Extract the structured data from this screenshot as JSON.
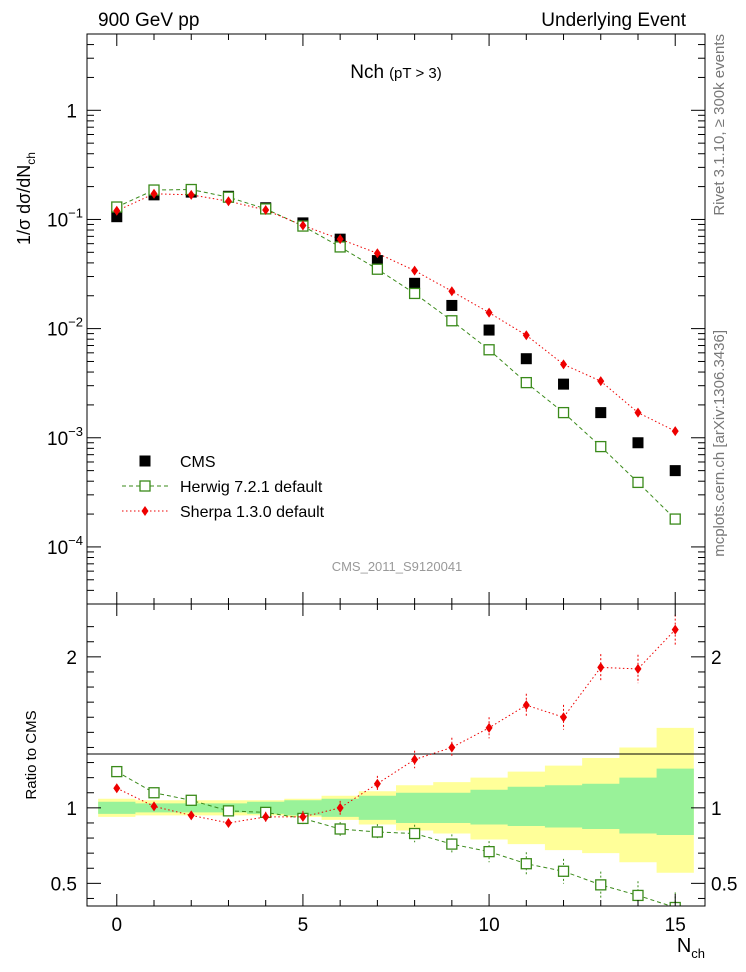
{
  "header": {
    "left": "900 GeV pp",
    "right": "Underlying Event"
  },
  "side_labels": {
    "rivet": "Rivet 3.1.10, ≥ 300k events",
    "mcplots": "mcplots.cern.ch [arXiv:1306.3436]"
  },
  "colors": {
    "cms": "#000000",
    "herwig": "#3a8a1a",
    "sherpa": "#ee0000",
    "band_inner": "#99f299",
    "band_outer": "#ffff99"
  },
  "chart_data": [
    {
      "type": "scatter",
      "panel": "main",
      "title": "Nch",
      "title_sub": "(pT >  3)",
      "ylabel": "1/σ dσ/dN",
      "ylabel_sub": "ch",
      "yscale": "log",
      "ylim": [
        3e-05,
        5
      ],
      "xlim": [
        -0.8,
        15.8
      ],
      "ytick_labels": [
        {
          "value": 1,
          "base": "1",
          "exp": ""
        },
        {
          "value": 0.1,
          "base": "10",
          "exp": "−1"
        },
        {
          "value": 0.01,
          "base": "10",
          "exp": "−2"
        },
        {
          "value": 0.001,
          "base": "10",
          "exp": "−3"
        },
        {
          "value": 0.0001,
          "base": "10",
          "exp": "−4"
        }
      ],
      "watermark": "CMS_2011_S9120041",
      "legend_position": "bottom-left",
      "x": [
        0,
        1,
        2,
        3,
        4,
        5,
        6,
        7,
        8,
        9,
        10,
        11,
        12,
        13,
        14,
        15
      ],
      "series": [
        {
          "name": "CMS",
          "marker": "filled-square",
          "values": [
            0.106,
            0.168,
            0.178,
            0.163,
            0.128,
            0.093,
            0.066,
            0.042,
            0.026,
            0.0163,
            0.0097,
            0.0053,
            0.0031,
            0.0017,
            0.0009,
            0.0005
          ]
        },
        {
          "name": "Herwig 7.2.1 default",
          "marker": "open-square",
          "line": "dashed",
          "values": [
            0.13,
            0.186,
            0.188,
            0.16,
            0.125,
            0.087,
            0.056,
            0.035,
            0.021,
            0.0118,
            0.0064,
            0.0032,
            0.0017,
            0.00083,
            0.00039,
            0.00018
          ]
        },
        {
          "name": "Sherpa 1.3.0 default",
          "marker": "diamond",
          "line": "dotted",
          "values": [
            0.12,
            0.172,
            0.168,
            0.147,
            0.122,
            0.088,
            0.066,
            0.049,
            0.034,
            0.022,
            0.014,
            0.0087,
            0.0047,
            0.0033,
            0.0017,
            0.00115
          ]
        }
      ]
    },
    {
      "type": "scatter",
      "panel": "ratio",
      "ylabel": "Ratio to CMS",
      "xlabel": "N",
      "xlabel_sub": "ch",
      "ylim": [
        0.35,
        2.35
      ],
      "xlim": [
        -0.8,
        15.8
      ],
      "xtick_labels": [
        "0",
        "5",
        "10",
        "15"
      ],
      "xtick_values": [
        0,
        5,
        10,
        15
      ],
      "ytick_labels": [
        "0.5",
        "1",
        "2"
      ],
      "ytick_values": [
        0.5,
        1,
        2
      ],
      "x": [
        0,
        1,
        2,
        3,
        4,
        5,
        6,
        7,
        8,
        9,
        10,
        11,
        12,
        13,
        14,
        15
      ],
      "band_inner": {
        "lower": [
          0.96,
          0.97,
          0.97,
          0.97,
          0.96,
          0.95,
          0.94,
          0.92,
          0.9,
          0.9,
          0.89,
          0.88,
          0.87,
          0.86,
          0.83,
          0.82
        ],
        "upper": [
          1.04,
          1.03,
          1.03,
          1.03,
          1.04,
          1.05,
          1.06,
          1.08,
          1.1,
          1.1,
          1.12,
          1.14,
          1.15,
          1.16,
          1.2,
          1.26
        ]
      },
      "band_outer": {
        "lower": [
          0.94,
          0.95,
          0.95,
          0.95,
          0.95,
          0.94,
          0.92,
          0.89,
          0.85,
          0.83,
          0.79,
          0.76,
          0.72,
          0.7,
          0.64,
          0.57
        ],
        "upper": [
          1.06,
          1.05,
          1.05,
          1.05,
          1.05,
          1.06,
          1.08,
          1.11,
          1.15,
          1.17,
          1.2,
          1.24,
          1.28,
          1.33,
          1.4,
          1.53
        ]
      },
      "series": [
        {
          "name": "Herwig 7.2.1 default",
          "marker": "open-square",
          "line": "dashed",
          "values": [
            1.24,
            1.1,
            1.05,
            0.98,
            0.97,
            0.93,
            0.86,
            0.84,
            0.83,
            0.76,
            0.71,
            0.63,
            0.58,
            0.49,
            0.42,
            0.34
          ]
        },
        {
          "name": "Sherpa 1.3.0 default",
          "marker": "diamond",
          "line": "dotted",
          "values": [
            1.13,
            1.01,
            0.95,
            0.9,
            0.94,
            0.94,
            1.0,
            1.16,
            1.32,
            1.4,
            1.53,
            1.68,
            1.6,
            1.93,
            1.92,
            2.18
          ]
        }
      ]
    }
  ]
}
